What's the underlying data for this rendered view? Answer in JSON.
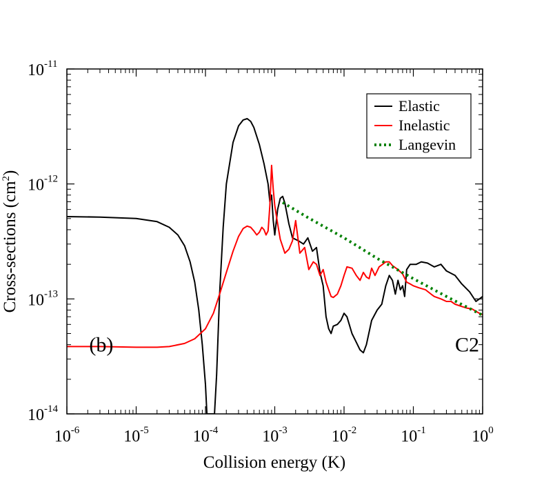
{
  "chart_data": {
    "type": "line",
    "title": "",
    "xlabel": "Collision energy (K)",
    "ylabel": "Cross-sections (cm",
    "ylabel_sup": "2",
    "ylabel_end": ")",
    "xscale": "log",
    "yscale": "log",
    "xlim": [
      1e-06,
      1
    ],
    "ylim": [
      1e-14,
      1e-11
    ],
    "xticks": [
      {
        "base": "10",
        "exp": "-6",
        "value": 1e-06
      },
      {
        "base": "10",
        "exp": "-5",
        "value": 1e-05
      },
      {
        "base": "10",
        "exp": "-4",
        "value": 0.0001
      },
      {
        "base": "10",
        "exp": "-3",
        "value": 0.001
      },
      {
        "base": "10",
        "exp": "-2",
        "value": 0.01
      },
      {
        "base": "10",
        "exp": "-1",
        "value": 0.1
      },
      {
        "base": "10",
        "exp": "0",
        "value": 1
      }
    ],
    "yticks": [
      {
        "base": "10",
        "exp": "-14",
        "value": 1e-14
      },
      {
        "base": "10",
        "exp": "-13",
        "value": 1e-13
      },
      {
        "base": "10",
        "exp": "-12",
        "value": 1e-12
      },
      {
        "base": "10",
        "exp": "-11",
        "value": 1e-11
      }
    ],
    "annotations": [
      {
        "id": "panel-label",
        "text": "(b)",
        "x": 2.1e-06,
        "y": 3.5e-14
      },
      {
        "id": "system-label",
        "text": "C2",
        "x": 0.4,
        "y": 3.5e-14
      }
    ],
    "legend": {
      "position": "top-right"
    },
    "series": [
      {
        "name": "Elastic",
        "color": "#000000",
        "style": "solid",
        "points": [
          [
            1e-06,
            5.2e-13
          ],
          [
            3e-06,
            5.15e-13
          ],
          [
            1e-05,
            5e-13
          ],
          [
            2e-05,
            4.7e-13
          ],
          [
            3e-05,
            4.2e-13
          ],
          [
            4e-05,
            3.6e-13
          ],
          [
            5e-05,
            2.9e-13
          ],
          [
            6e-05,
            2.1e-13
          ],
          [
            7e-05,
            1.4e-13
          ],
          [
            8e-05,
            8e-14
          ],
          [
            9e-05,
            4e-14
          ],
          [
            0.0001,
            1.8e-14
          ],
          [
            0.000105,
            1e-14
          ],
          [
            0.000135,
            1e-14
          ],
          [
            0.000145,
            2.2e-14
          ],
          [
            0.00016,
            1.1e-13
          ],
          [
            0.00018,
            4.2e-13
          ],
          [
            0.0002,
            1e-12
          ],
          [
            0.00025,
            2.3e-12
          ],
          [
            0.0003,
            3.2e-12
          ],
          [
            0.00035,
            3.6e-12
          ],
          [
            0.0004,
            3.7e-12
          ],
          [
            0.00045,
            3.5e-12
          ],
          [
            0.0005,
            3.1e-12
          ],
          [
            0.0006,
            2.2e-12
          ],
          [
            0.0007,
            1.5e-12
          ],
          [
            0.0008,
            1e-12
          ],
          [
            0.00085,
            7e-13
          ],
          [
            0.0009,
            8e-13
          ],
          [
            0.00095,
            4.8e-13
          ],
          [
            0.001,
            3.6e-13
          ],
          [
            0.0011,
            6e-13
          ],
          [
            0.0012,
            7.5e-13
          ],
          [
            0.0013,
            7.8e-13
          ],
          [
            0.0014,
            6.8e-13
          ],
          [
            0.0016,
            4.5e-13
          ],
          [
            0.0018,
            3.4e-13
          ],
          [
            0.0022,
            3.2e-13
          ],
          [
            0.0026,
            3e-13
          ],
          [
            0.003,
            3.4e-13
          ],
          [
            0.0035,
            2.6e-13
          ],
          [
            0.004,
            2.8e-13
          ],
          [
            0.0045,
            1.7e-13
          ],
          [
            0.005,
            1.3e-13
          ],
          [
            0.0055,
            7e-14
          ],
          [
            0.006,
            5.5e-14
          ],
          [
            0.0065,
            5e-14
          ],
          [
            0.007,
            5.8e-14
          ],
          [
            0.008,
            6e-14
          ],
          [
            0.009,
            6.5e-14
          ],
          [
            0.01,
            7.5e-14
          ],
          [
            0.011,
            7e-14
          ],
          [
            0.013,
            5e-14
          ],
          [
            0.015,
            4.2e-14
          ],
          [
            0.017,
            3.6e-14
          ],
          [
            0.019,
            3.4e-14
          ],
          [
            0.021,
            4e-14
          ],
          [
            0.025,
            6.5e-14
          ],
          [
            0.03,
            8e-14
          ],
          [
            0.035,
            9e-14
          ],
          [
            0.04,
            1.3e-13
          ],
          [
            0.045,
            1.6e-13
          ],
          [
            0.05,
            1.45e-13
          ],
          [
            0.055,
            1.1e-13
          ],
          [
            0.06,
            1.45e-13
          ],
          [
            0.065,
            1.2e-13
          ],
          [
            0.07,
            1.3e-13
          ],
          [
            0.075,
            1.05e-13
          ],
          [
            0.08,
            1.8e-13
          ],
          [
            0.09,
            2e-13
          ],
          [
            0.11,
            2e-13
          ],
          [
            0.13,
            2.1e-13
          ],
          [
            0.16,
            2.05e-13
          ],
          [
            0.2,
            1.9e-13
          ],
          [
            0.25,
            2e-13
          ],
          [
            0.3,
            1.75e-13
          ],
          [
            0.4,
            1.6e-13
          ],
          [
            0.5,
            1.35e-13
          ],
          [
            0.65,
            1.15e-13
          ],
          [
            0.8,
            9.5e-14
          ],
          [
            0.9,
            1e-13
          ],
          [
            1.0,
            1.05e-13
          ]
        ]
      },
      {
        "name": "Inelastic",
        "color": "#ff0000",
        "style": "solid",
        "points": [
          [
            1e-06,
            3.85e-14
          ],
          [
            3e-06,
            3.85e-14
          ],
          [
            1e-05,
            3.8e-14
          ],
          [
            2e-05,
            3.8e-14
          ],
          [
            3e-05,
            3.85e-14
          ],
          [
            5e-05,
            4.1e-14
          ],
          [
            7e-05,
            4.5e-14
          ],
          [
            0.0001,
            5.5e-14
          ],
          [
            0.00013,
            7.5e-14
          ],
          [
            0.00016,
            1.1e-13
          ],
          [
            0.0002,
            1.7e-13
          ],
          [
            0.00025,
            2.6e-13
          ],
          [
            0.0003,
            3.5e-13
          ],
          [
            0.00035,
            4.1e-13
          ],
          [
            0.0004,
            4.3e-13
          ],
          [
            0.00045,
            4.2e-13
          ],
          [
            0.0005,
            3.9e-13
          ],
          [
            0.00055,
            3.6e-13
          ],
          [
            0.0006,
            3.8e-13
          ],
          [
            0.00065,
            4.2e-13
          ],
          [
            0.0007,
            4e-13
          ],
          [
            0.00075,
            3.6e-13
          ],
          [
            0.0008,
            3.9e-13
          ],
          [
            0.00085,
            6.5e-13
          ],
          [
            0.0009,
            1.45e-12
          ],
          [
            0.00095,
            9e-13
          ],
          [
            0.001,
            6.5e-13
          ],
          [
            0.0011,
            4.5e-13
          ],
          [
            0.0012,
            3.3e-13
          ],
          [
            0.0014,
            2.5e-13
          ],
          [
            0.0016,
            2.7e-13
          ],
          [
            0.0018,
            3.2e-13
          ],
          [
            0.002,
            4.8e-13
          ],
          [
            0.0023,
            2.5e-13
          ],
          [
            0.0027,
            2.8e-13
          ],
          [
            0.0031,
            1.8e-13
          ],
          [
            0.0036,
            2.1e-13
          ],
          [
            0.004,
            2e-13
          ],
          [
            0.0045,
            1.6e-13
          ],
          [
            0.005,
            1.8e-13
          ],
          [
            0.0055,
            1.4e-13
          ],
          [
            0.006,
            1.2e-13
          ],
          [
            0.0065,
            1.05e-13
          ],
          [
            0.007,
            1.03e-13
          ],
          [
            0.008,
            1.1e-13
          ],
          [
            0.009,
            1.3e-13
          ],
          [
            0.01,
            1.6e-13
          ],
          [
            0.011,
            1.9e-13
          ],
          [
            0.013,
            1.85e-13
          ],
          [
            0.015,
            1.6e-13
          ],
          [
            0.017,
            1.45e-13
          ],
          [
            0.019,
            1.7e-13
          ],
          [
            0.021,
            1.55e-13
          ],
          [
            0.023,
            1.5e-13
          ],
          [
            0.025,
            1.85e-13
          ],
          [
            0.028,
            1.6e-13
          ],
          [
            0.032,
            1.9e-13
          ],
          [
            0.036,
            2e-13
          ],
          [
            0.04,
            2.1e-13
          ],
          [
            0.045,
            2.1e-13
          ],
          [
            0.05,
            1.95e-13
          ],
          [
            0.06,
            1.8e-13
          ],
          [
            0.07,
            1.65e-13
          ],
          [
            0.08,
            1.4e-13
          ],
          [
            0.09,
            1.35e-13
          ],
          [
            0.1,
            1.3e-13
          ],
          [
            0.12,
            1.25e-13
          ],
          [
            0.15,
            1.2e-13
          ],
          [
            0.18,
            1.1e-13
          ],
          [
            0.2,
            1.05e-13
          ],
          [
            0.25,
            1e-13
          ],
          [
            0.3,
            9.5e-14
          ],
          [
            0.35,
            9.5e-14
          ],
          [
            0.4,
            9e-14
          ],
          [
            0.5,
            8.6e-14
          ],
          [
            0.6,
            8.3e-14
          ],
          [
            0.7,
            8.2e-14
          ],
          [
            0.8,
            7.8e-14
          ],
          [
            0.9,
            7.5e-14
          ],
          [
            1.0,
            7.3e-14
          ]
        ]
      },
      {
        "name": "Langevin",
        "color": "#008000",
        "style": "dotted",
        "points": [
          [
            0.0013,
            6.9e-13
          ],
          [
            0.003,
            5.1e-13
          ],
          [
            0.01,
            3.4e-13
          ],
          [
            0.03,
            2.25e-13
          ],
          [
            0.1,
            1.5e-13
          ],
          [
            0.3,
            1.05e-13
          ],
          [
            1.0,
            7.2e-14
          ]
        ]
      }
    ]
  }
}
